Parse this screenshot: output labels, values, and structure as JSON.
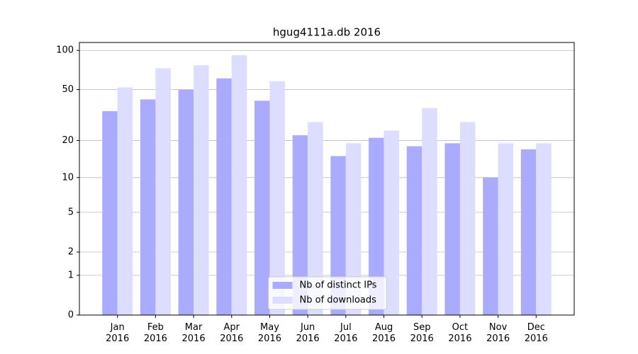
{
  "chart_data": {
    "type": "bar",
    "title": "hgug4111a.db 2016",
    "categories": [
      "Jan\n2016",
      "Feb\n2016",
      "Mar\n2016",
      "Apr\n2016",
      "May\n2016",
      "Jun\n2016",
      "Jul\n2016",
      "Aug\n2016",
      "Sep\n2016",
      "Oct\n2016",
      "Nov\n2016",
      "Dec\n2016"
    ],
    "series": [
      {
        "name": "Nb of distinct IPs",
        "color": "#aaaaff",
        "values": [
          34,
          42,
          50,
          61,
          41,
          22,
          15,
          21,
          18,
          19,
          10,
          17
        ]
      },
      {
        "name": "Nb of downloads",
        "color": "#ddddff",
        "values": [
          52,
          73,
          77,
          92,
          58,
          28,
          19,
          24,
          36,
          28,
          19,
          19
        ]
      }
    ],
    "yscale": "log1p",
    "ylim": [
      0,
      115
    ],
    "yticks": [
      0,
      1,
      2,
      5,
      10,
      20,
      50,
      100
    ],
    "grid": true,
    "legend": "lower center"
  }
}
